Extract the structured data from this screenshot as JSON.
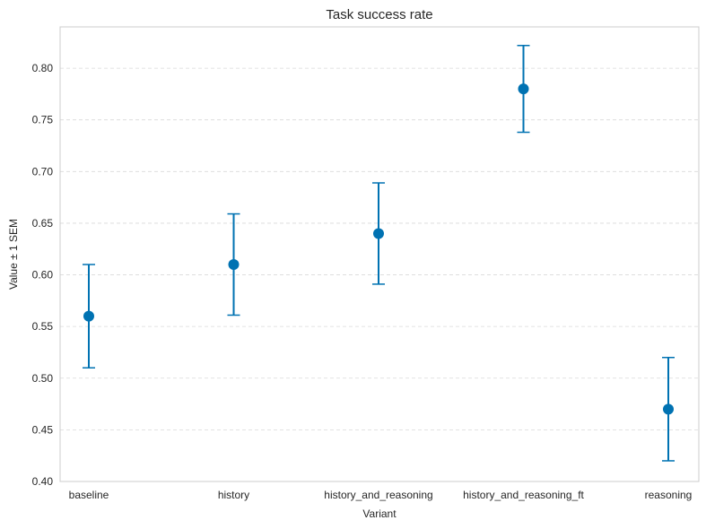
{
  "chart_data": {
    "type": "scatter",
    "title": "Task success rate",
    "xlabel": "Variant",
    "ylabel": "Value ± 1 SEM",
    "categories": [
      "baseline",
      "history",
      "history_and_reasoning",
      "history_and_reasoning_ft",
      "reasoning"
    ],
    "values": [
      0.56,
      0.61,
      0.64,
      0.78,
      0.47
    ],
    "error": [
      0.05,
      0.049,
      0.049,
      0.042,
      0.05
    ],
    "ylim": [
      0.4,
      0.84
    ],
    "yticks": [
      0.4,
      0.45,
      0.5,
      0.55,
      0.6,
      0.65,
      0.7,
      0.75,
      0.8
    ],
    "grid": "horizontal dashed",
    "color": "#0072b2"
  }
}
